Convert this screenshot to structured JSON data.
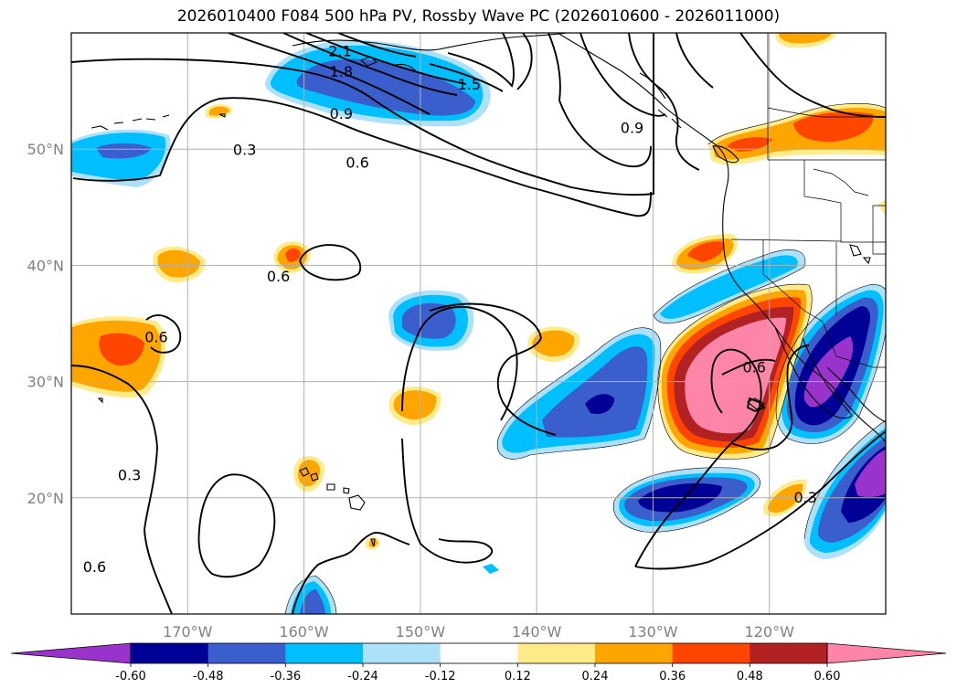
{
  "title": "2026010400 F084 500 hPa PV, Rossby Wave PC (2026010600 - 2026011000)",
  "map": {
    "lon_range": [
      -180,
      -110
    ],
    "lat_range": [
      10,
      60
    ],
    "lon_ticks": [
      {
        "lon": -170,
        "label": "170°W"
      },
      {
        "lon": -160,
        "label": "160°W"
      },
      {
        "lon": -150,
        "label": "150°W"
      },
      {
        "lon": -140,
        "label": "140°W"
      },
      {
        "lon": -130,
        "label": "130°W"
      },
      {
        "lon": -120,
        "label": "120°W"
      }
    ],
    "lat_ticks": [
      {
        "lat": 20,
        "label": "20°N"
      },
      {
        "lat": 30,
        "label": "30°N"
      },
      {
        "lat": 40,
        "label": "40°N"
      },
      {
        "lat": 50,
        "label": "50°N"
      }
    ],
    "grid": true,
    "contour_labels": [
      {
        "text": "2.1",
        "lon": -156.9,
        "lat": 58.4
      },
      {
        "text": "1.8",
        "lon": -156.8,
        "lat": 56.6
      },
      {
        "text": "1.5",
        "lon": -145.8,
        "lat": 55.5
      },
      {
        "text": "0.9",
        "lon": -156.8,
        "lat": 53.0
      },
      {
        "text": "0.9",
        "lon": -131.8,
        "lat": 51.8
      },
      {
        "text": "0.3",
        "lon": -165.1,
        "lat": 49.9
      },
      {
        "text": "0.6",
        "lon": -155.4,
        "lat": 48.8
      },
      {
        "text": "0.6",
        "lon": -162.2,
        "lat": 39.0
      },
      {
        "text": "0.6",
        "lon": -172.7,
        "lat": 33.8
      },
      {
        "text": "0.6",
        "lon": -121.3,
        "lat": 31.2
      },
      {
        "text": "0.3",
        "lon": -175.0,
        "lat": 21.9
      },
      {
        "text": "0.6",
        "lon": -178.0,
        "lat": 14.0
      },
      {
        "text": "0.3",
        "lon": -116.9,
        "lat": 20.0
      }
    ]
  },
  "colorbar": {
    "levels": [
      "-0.60",
      "-0.48",
      "-0.36",
      "-0.24",
      "-0.12",
      "0.12",
      "0.24",
      "0.36",
      "0.48",
      "0.60"
    ],
    "colors": [
      "#9933cc",
      "#000096",
      "#3a5fcd",
      "#00bfff",
      "#ade1fa",
      "#ffffff",
      "#ffeb8a",
      "#ffa500",
      "#ff4500",
      "#b22222",
      "#ff85a8"
    ]
  }
}
